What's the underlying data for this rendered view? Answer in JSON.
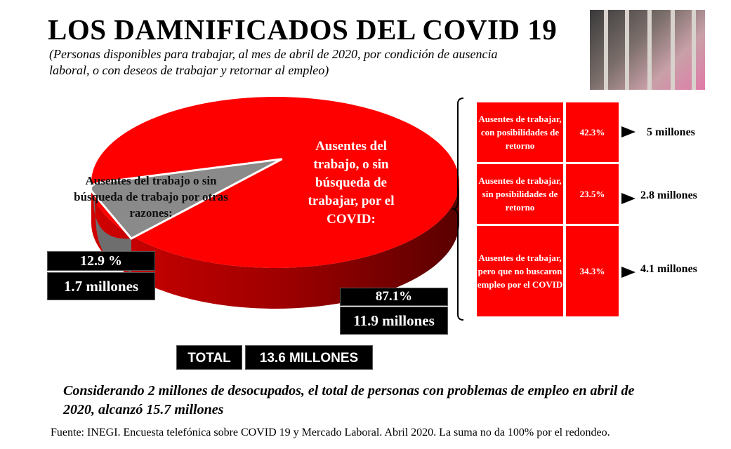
{
  "header": {
    "title": "LOS DAMNIFICADOS DEL COVID 19",
    "subtitle": "(Personas disponibles para trabajar, al mes de abril de 2020, por condición de ausencia laboral, o con deseos de trabajar y retornar al empleo)"
  },
  "chart_data": {
    "type": "pie",
    "style": "3d",
    "slices": [
      {
        "label": "Ausentes del trabajo, o sin búsqueda de trabajar, por el COVID:",
        "percent_label": "87.1%",
        "millions_label": "11.9 millones",
        "value": 87.1,
        "millions": 11.9,
        "color": "#ff0000"
      },
      {
        "label": "Ausentes del trabajo o sin búsqueda de trabajo por otras razones:",
        "percent_label": "12.9 %",
        "millions_label": "1.7 millones",
        "value": 12.9,
        "millions": 1.7,
        "color": "#808080"
      }
    ],
    "breakdown": [
      {
        "label": "Ausentes de trabajar, con posibilidades de retorno",
        "percent": "42.3%",
        "millions": "5 millones"
      },
      {
        "label": "Ausentes de trabajar, sin posibilidades de retorno",
        "percent": "23.5%",
        "millions": "2.8 millones"
      },
      {
        "label": "Ausentes de trabajar, pero que no buscaron empleo por el COVID",
        "percent": "34.3%",
        "millions": "4.1 millones"
      }
    ]
  },
  "total": {
    "label": "TOTAL",
    "value": "13.6 MILLONES"
  },
  "note": "Considerando 2 millones de desocupados, el total de personas con problemas de empleo en abril de 2020, alcanzó 15.7 millones",
  "source": "Fuente: INEGI. Encuesta telefónica sobre COVID 19 y Mercado Laboral. Abril 2020. La suma no da 100% por el redondeo."
}
